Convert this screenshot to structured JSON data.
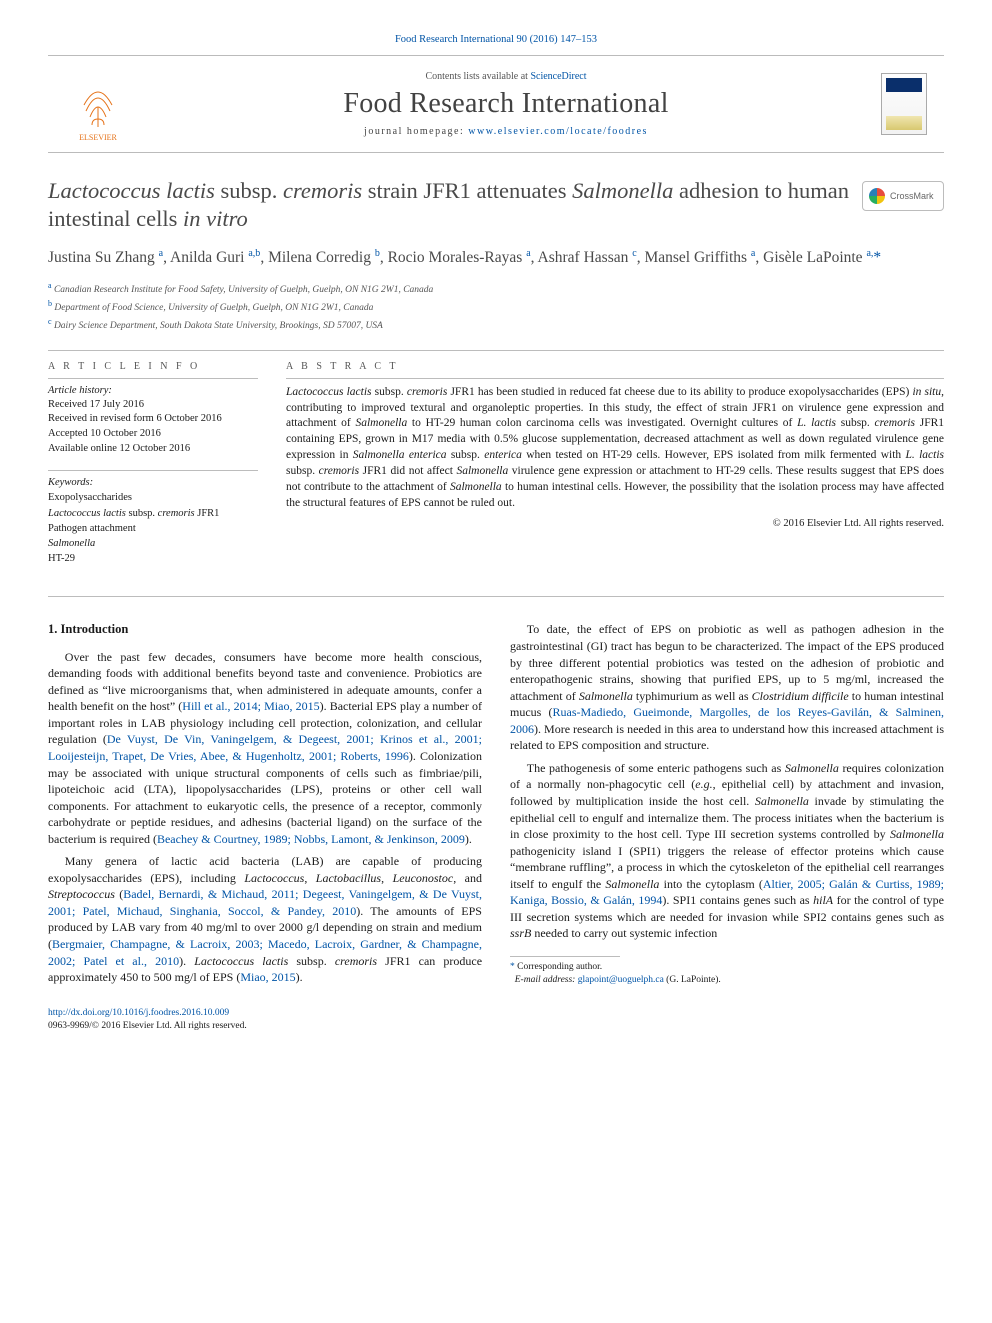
{
  "meta": {
    "citation_line": "Food Research International 90 (2016) 147–153",
    "contents_text": "Contents lists available at ",
    "contents_link_text": "ScienceDirect",
    "journal_name": "Food Research International",
    "homepage_label": "journal homepage: ",
    "homepage_url": "www.elsevier.com/locate/foodres",
    "publisher_logo_label": "ELSEVIER",
    "crossmark_label": "CrossMark"
  },
  "title": {
    "html": "<span class='ital'>Lactococcus lactis</span> subsp. <span class='ital'>cremoris</span> strain JFR1 attenuates <span class='ital'>Salmonella</span> adhesion to human intestinal cells <span class='ital'>in vitro</span>"
  },
  "authors": {
    "list_html": "Justina Su Zhang <span class='aff-sup'>a</span>, Anilda Guri <span class='aff-sup'>a,b</span>, Milena Corredig <span class='aff-sup'>b</span>, Rocio Morales-Rayas <span class='aff-sup'>a</span>, Ashraf Hassan <span class='aff-sup'>c</span>, Mansel Griffiths <span class='aff-sup'>a</span>, Gisèle LaPointe <span class='aff-sup'>a,</span><span class='corr-star'>*</span>"
  },
  "affiliations": [
    {
      "label": "a",
      "text": "Canadian Research Institute for Food Safety, University of Guelph, Guelph, ON N1G 2W1, Canada"
    },
    {
      "label": "b",
      "text": "Department of Food Science, University of Guelph, Guelph, ON N1G 2W1, Canada"
    },
    {
      "label": "c",
      "text": "Dairy Science Department, South Dakota State University, Brookings, SD 57007, USA"
    }
  ],
  "article_info": {
    "section_label": "A R T I C L E   I N F O",
    "history_label": "Article history:",
    "history": [
      "Received 17 July 2016",
      "Received in revised form 6 October 2016",
      "Accepted 10 October 2016",
      "Available online 12 October 2016"
    ],
    "keywords_label": "Keywords:",
    "keywords": [
      "Exopolysaccharides",
      "Lactococcus lactis subsp. cremoris JFR1",
      "Pathogen attachment",
      "Salmonella",
      "HT-29"
    ]
  },
  "abstract": {
    "section_label": "A B S T R A C T",
    "text_html": "<span class='ital'>Lactococcus lactis</span> subsp. <span class='ital'>cremoris</span> JFR1 has been studied in reduced fat cheese due to its ability to produce exopolysaccharides (EPS) <span class='ital'>in situ</span>, contributing to improved textural and organoleptic properties. In this study, the effect of strain JFR1 on virulence gene expression and attachment of <span class='ital'>Salmonella</span> to HT-29 human colon carcinoma cells was investigated. Overnight cultures of <span class='ital'>L. lactis</span> subsp. <span class='ital'>cremoris</span> JFR1 containing EPS, grown in M17 media with 0.5% glucose supplementation, decreased attachment as well as down regulated virulence gene expression in <span class='ital'>Salmonella enterica</span> subsp. <span class='ital'>enterica</span> when tested on HT-29 cells. However, EPS isolated from milk fermented with <span class='ital'>L. lactis</span> subsp. <span class='ital'>cremoris</span> JFR1 did not affect <span class='ital'>Salmonella</span> virulence gene expression or attachment to HT-29 cells. These results suggest that EPS does not contribute to the attachment of <span class='ital'>Salmonella</span> to human intestinal cells. However, the possibility that the isolation process may have affected the structural features of EPS cannot be ruled out.",
    "copyright": "© 2016 Elsevier Ltd. All rights reserved."
  },
  "body": {
    "heading": "1. Introduction",
    "paragraphs_html": [
      "Over the past few decades, consumers have become more health conscious, demanding foods with additional benefits beyond taste and convenience. Probiotics are defined as “live microorganisms that, when administered in adequate amounts, confer a health benefit on the host” (<span class='cite'>Hill et al., 2014; Miao, 2015</span>). Bacterial EPS play a number of important roles in LAB physiology including cell protection, colonization, and cellular regulation (<span class='cite'>De Vuyst, De Vin, Vaningelgem, &amp; Degeest, 2001; Krinos et al., 2001; Looijesteijn, Trapet, De Vries, Abee, &amp; Hugenholtz, 2001; Roberts, 1996</span>). Colonization may be associated with unique structural components of cells such as fimbriae/pili, lipoteichoic acid (LTA), lipopolysaccharides (LPS), proteins or other cell wall components. For attachment to eukaryotic cells, the presence of a receptor, commonly carbohydrate or peptide residues, and adhesins (bacterial ligand) on the surface of the bacterium is required (<span class='cite'>Beachey &amp; Courtney, 1989; Nobbs, Lamont, &amp; Jenkinson, 2009</span>).",
      "Many genera of lactic acid bacteria (LAB) are capable of producing exopolysaccharides (EPS), including <span class='ital'>Lactococcus</span>, <span class='ital'>Lactobacillus</span>, <span class='ital'>Leuconostoc</span>, and <span class='ital'>Streptococcus</span> (<span class='cite'>Badel, Bernardi, &amp; Michaud, 2011; Degeest, Vaningelgem, &amp; De Vuyst, 2001; Patel, Michaud, Singhania, Soccol, &amp; Pandey, 2010</span>). The amounts of EPS produced by LAB vary from 40 mg/ml to over 2000 g/l depending on strain and medium (<span class='cite'>Bergmaier, Champagne, &amp; Lacroix, 2003; Macedo, Lacroix, Gardner, &amp; Champagne, 2002; Patel et al., 2010</span>). <span class='ital'>Lactococcus lactis</span> subsp. <span class='ital'>cremoris</span> JFR1 can produce approximately 450 to 500 mg/l of EPS (<span class='cite'>Miao, 2015</span>).",
      "To date, the effect of EPS on probiotic as well as pathogen adhesion in the gastrointestinal (GI) tract has begun to be characterized. The impact of the EPS produced by three different potential probiotics was tested on the adhesion of probiotic and enteropathogenic strains, showing that purified EPS, up to 5 mg/ml, increased the attachment of <span class='ital'>Salmonella</span> typhimurium as well as <span class='ital'>Clostridium difficile</span> to human intestinal mucus (<span class='cite'>Ruas-Madiedo, Gueimonde, Margolles, de los Reyes-Gavilán, &amp; Salminen, 2006</span>). More research is needed in this area to understand how this increased attachment is related to EPS composition and structure.",
      "The pathogenesis of some enteric pathogens such as <span class='ital'>Salmonella</span> requires colonization of a normally non-phagocytic cell (<span class='ital'>e.g.</span>, epithelial cell) by attachment and invasion, followed by multiplication inside the host cell. <span class='ital'>Salmonella</span> invade by stimulating the epithelial cell to engulf and internalize them. The process initiates when the bacterium is in close proximity to the host cell. Type III secretion systems controlled by <span class='ital'>Salmonella</span> pathogenicity island I (SPI1) triggers the release of effector proteins which cause “membrane ruffling”, a process in which the cytoskeleton of the epithelial cell rearranges itself to engulf the <span class='ital'>Salmonella</span> into the cytoplasm (<span class='cite'>Altier, 2005; Galán &amp; Curtiss, 1989; Kaniga, Bossio, &amp; Galán, 1994</span>). SPI1 contains genes such as <span class='ital'>hilA</span> for the control of type III secretion systems which are needed for invasion while SPI2 contains genes such as <span class='ital'>ssrB</span> needed to carry out systemic infection"
    ]
  },
  "footnote": {
    "corresponding_label": "Corresponding author.",
    "email_label": "E-mail address:",
    "email": "glapoint@uoguelph.ca",
    "email_author": "(G. LaPointe)."
  },
  "footer": {
    "doi": "http://dx.doi.org/10.1016/j.foodres.2016.10.009",
    "issn_line": "0963-9969/© 2016 Elsevier Ltd. All rights reserved."
  },
  "colors": {
    "link": "#0054a6",
    "text": "#1a1a1a",
    "muted": "#555555",
    "rule": "#bcbcbc",
    "elsevier_orange": "#e6731a"
  }
}
